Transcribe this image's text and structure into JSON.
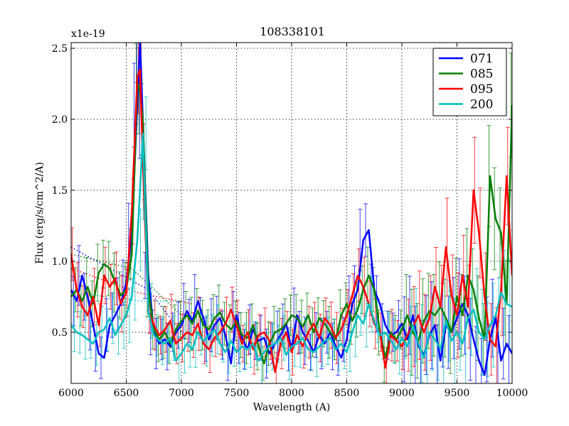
{
  "chart_data": {
    "type": "line",
    "title": "108338101",
    "xlabel": "Wavelength (A)",
    "ylabel": "Flux (erg/s/cm^2/A)",
    "offset_label": "x1e-19",
    "xlim": [
      6000,
      10000
    ],
    "ylim": [
      0.14,
      2.54
    ],
    "xticks": [
      6000,
      6500,
      7000,
      7500,
      8000,
      8500,
      9000,
      9500,
      10000
    ],
    "yticks": [
      0.5,
      1.0,
      1.5,
      2.0,
      2.5
    ],
    "xtick_labels": [
      "6000",
      "6500",
      "7000",
      "7500",
      "8000",
      "8500",
      "9000",
      "9500",
      "10000"
    ],
    "ytick_labels": [
      "0.5",
      "1.0",
      "1.5",
      "2.0",
      "2.5"
    ],
    "grid": true,
    "legend_position": "top-right",
    "error_bars": true,
    "x": [
      6000,
      6050,
      6100,
      6150,
      6200,
      6250,
      6300,
      6350,
      6400,
      6450,
      6500,
      6550,
      6600,
      6625,
      6650,
      6700,
      6750,
      6800,
      6850,
      6900,
      6950,
      7000,
      7050,
      7100,
      7150,
      7200,
      7250,
      7300,
      7350,
      7400,
      7450,
      7500,
      7550,
      7600,
      7650,
      7700,
      7750,
      7800,
      7850,
      7900,
      7950,
      8000,
      8050,
      8100,
      8150,
      8200,
      8250,
      8300,
      8350,
      8400,
      8450,
      8500,
      8550,
      8600,
      8650,
      8700,
      8750,
      8800,
      8850,
      8900,
      8950,
      9000,
      9050,
      9100,
      9150,
      9200,
      9250,
      9300,
      9350,
      9400,
      9450,
      9500,
      9550,
      9600,
      9650,
      9700,
      9750,
      9800,
      9850,
      9900,
      9950,
      10000
    ],
    "series": [
      {
        "name": "071",
        "color": "#0000ff",
        "values": [
          0.8,
          0.72,
          0.9,
          0.75,
          0.55,
          0.35,
          0.32,
          0.55,
          0.62,
          0.7,
          0.85,
          1.2,
          2.1,
          2.55,
          2.0,
          0.9,
          0.5,
          0.42,
          0.45,
          0.4,
          0.5,
          0.55,
          0.65,
          0.58,
          0.72,
          0.6,
          0.45,
          0.55,
          0.6,
          0.48,
          0.28,
          0.62,
          0.46,
          0.38,
          0.52,
          0.44,
          0.46,
          0.35,
          0.42,
          0.48,
          0.56,
          0.38,
          0.62,
          0.5,
          0.44,
          0.36,
          0.48,
          0.42,
          0.5,
          0.4,
          0.32,
          0.45,
          0.7,
          0.8,
          1.15,
          1.22,
          0.8,
          0.7,
          0.55,
          0.48,
          0.5,
          0.56,
          0.45,
          0.62,
          0.4,
          0.34,
          0.48,
          0.55,
          0.3,
          0.55,
          0.5,
          0.6,
          0.7,
          0.62,
          0.45,
          0.3,
          0.2,
          0.45,
          0.6,
          0.3,
          0.42,
          0.35
        ]
      },
      {
        "name": "085",
        "color": "#008000",
        "values": [
          0.75,
          0.8,
          0.72,
          0.82,
          0.7,
          0.92,
          0.98,
          0.95,
          0.85,
          0.76,
          0.8,
          1.05,
          2.25,
          2.2,
          2.0,
          0.8,
          0.52,
          0.45,
          0.5,
          0.42,
          0.52,
          0.58,
          0.62,
          0.56,
          0.65,
          0.55,
          0.52,
          0.6,
          0.64,
          0.56,
          0.52,
          0.58,
          0.48,
          0.46,
          0.55,
          0.4,
          0.28,
          0.42,
          0.5,
          0.52,
          0.56,
          0.62,
          0.6,
          0.54,
          0.62,
          0.5,
          0.6,
          0.56,
          0.5,
          0.45,
          0.62,
          0.7,
          0.58,
          0.66,
          0.8,
          0.9,
          0.8,
          0.5,
          0.32,
          0.5,
          0.45,
          0.52,
          0.62,
          0.5,
          0.44,
          0.58,
          0.65,
          0.62,
          0.68,
          0.6,
          0.5,
          0.75,
          0.62,
          0.9,
          0.8,
          0.6,
          0.45,
          1.6,
          1.3,
          1.2,
          0.7,
          2.1
        ]
      },
      {
        "name": "095",
        "color": "#ff0000",
        "values": [
          1.05,
          0.8,
          0.68,
          0.62,
          0.75,
          0.55,
          0.9,
          0.82,
          0.88,
          0.7,
          0.78,
          1.35,
          2.3,
          2.35,
          1.7,
          0.65,
          0.55,
          0.48,
          0.52,
          0.58,
          0.42,
          0.46,
          0.5,
          0.48,
          0.56,
          0.42,
          0.38,
          0.46,
          0.5,
          0.56,
          0.66,
          0.55,
          0.42,
          0.5,
          0.38,
          0.48,
          0.5,
          0.44,
          0.22,
          0.42,
          0.5,
          0.36,
          0.48,
          0.4,
          0.5,
          0.56,
          0.46,
          0.6,
          0.55,
          0.46,
          0.52,
          0.62,
          0.76,
          0.9,
          0.82,
          0.7,
          0.56,
          0.5,
          0.25,
          0.48,
          0.44,
          0.4,
          0.48,
          0.54,
          0.62,
          0.5,
          0.6,
          0.82,
          0.68,
          1.1,
          0.76,
          0.62,
          0.9,
          0.68,
          1.5,
          1.2,
          0.75,
          0.45,
          0.4,
          0.8,
          1.6,
          0.9
        ]
      },
      {
        "name": "200",
        "color": "#00bfbf",
        "values": [
          0.55,
          0.5,
          0.48,
          0.45,
          0.42,
          0.5,
          0.52,
          0.6,
          0.48,
          0.55,
          0.62,
          0.75,
          1.15,
          1.5,
          1.9,
          0.65,
          0.48,
          0.44,
          0.42,
          0.46,
          0.3,
          0.35,
          0.42,
          0.38,
          0.5,
          0.44,
          0.48,
          0.52,
          0.42,
          0.36,
          0.44,
          0.36,
          0.4,
          0.38,
          0.42,
          0.3,
          0.36,
          0.4,
          0.42,
          0.46,
          0.34,
          0.4,
          0.42,
          0.46,
          0.38,
          0.36,
          0.4,
          0.44,
          0.46,
          0.38,
          0.42,
          0.36,
          0.5,
          0.62,
          0.56,
          0.7,
          0.58,
          0.48,
          0.5,
          0.44,
          0.38,
          0.46,
          0.4,
          0.55,
          0.42,
          0.32,
          0.5,
          0.45,
          0.38,
          0.58,
          0.44,
          0.5,
          0.42,
          0.6,
          0.66,
          0.5,
          0.45,
          0.55,
          0.62,
          0.78,
          0.7,
          0.68
        ]
      }
    ]
  }
}
